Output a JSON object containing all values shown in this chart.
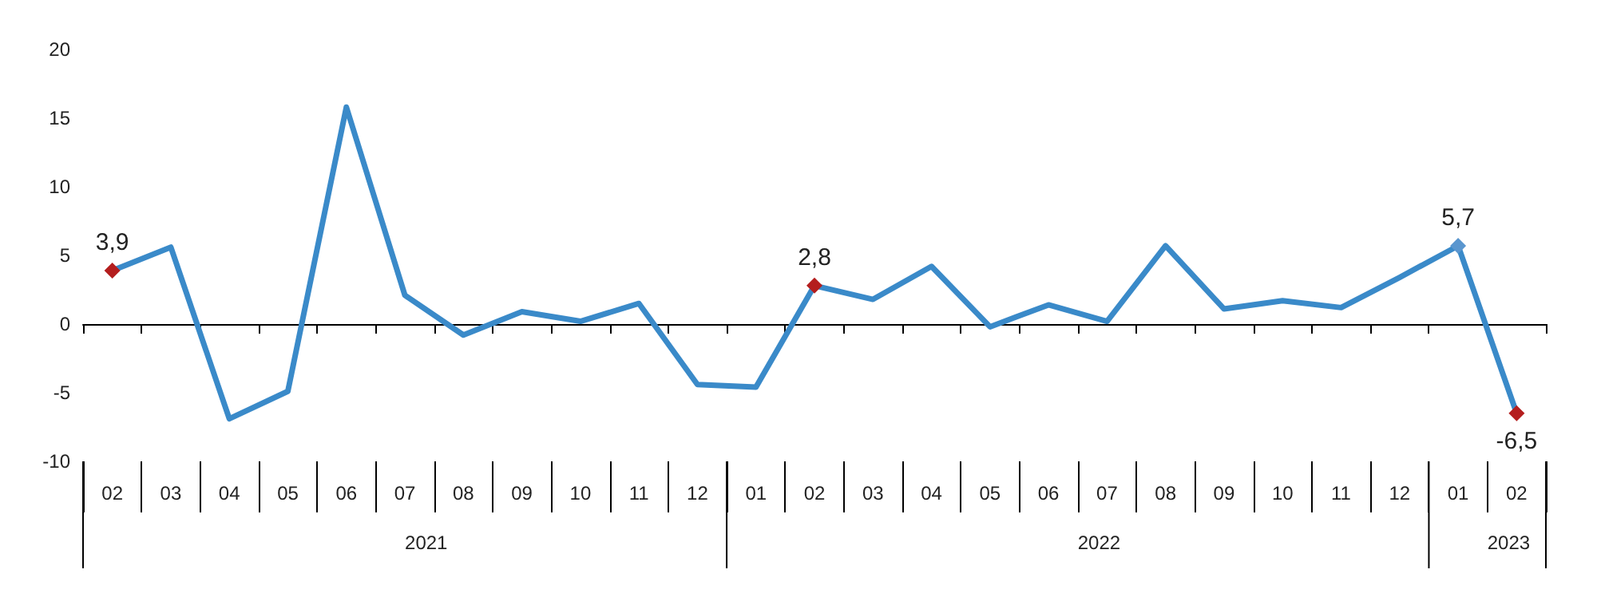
{
  "chart_data": {
    "type": "line",
    "categories": [
      "02",
      "03",
      "04",
      "05",
      "06",
      "07",
      "08",
      "09",
      "10",
      "11",
      "12",
      "01",
      "02",
      "03",
      "04",
      "05",
      "06",
      "07",
      "08",
      "09",
      "10",
      "11",
      "12",
      "01",
      "02"
    ],
    "series": [
      {
        "color": "#3a8ac9",
        "values": [
          3.9,
          5.6,
          -6.9,
          -4.9,
          15.8,
          2.1,
          -0.8,
          0.9,
          0.2,
          1.5,
          -4.4,
          -4.6,
          2.8,
          1.8,
          4.2,
          -0.2,
          1.4,
          0.2,
          5.7,
          1.1,
          1.7,
          1.2,
          3.4,
          5.7,
          -6.5
        ],
        "value_labels": [
          "3,9",
          null,
          null,
          null,
          null,
          null,
          null,
          null,
          null,
          null,
          null,
          null,
          "2,8",
          null,
          null,
          null,
          null,
          null,
          null,
          null,
          null,
          null,
          null,
          "5,7",
          "-6,5"
        ],
        "colors": [
          "#b41e1e",
          "#3a8ac9",
          "#3a8ac9",
          "#3a8ac9",
          "#3a8ac9",
          "#3a8ac9",
          "#3a8ac9",
          "#3a8ac9",
          "#3a8ac9",
          "#3a8ac9",
          "#3a8ac9",
          "#3a8ac9",
          "#b41e1e",
          "#3a8ac9",
          "#3a8ac9",
          "#3a8ac9",
          "#3a8ac9",
          "#3a8ac9",
          "#3a8ac9",
          "#3a8ac9",
          "#3a8ac9",
          "#3a8ac9",
          "#3a8ac9",
          "#5a96cf",
          "#b41e1e"
        ]
      }
    ],
    "ylim": [
      -10,
      20
    ],
    "yticks": [
      -10,
      -5,
      0,
      5,
      10,
      15,
      20
    ],
    "annotations": [
      "2021",
      "2022",
      "2023"
    ],
    "line_style": "solid"
  }
}
